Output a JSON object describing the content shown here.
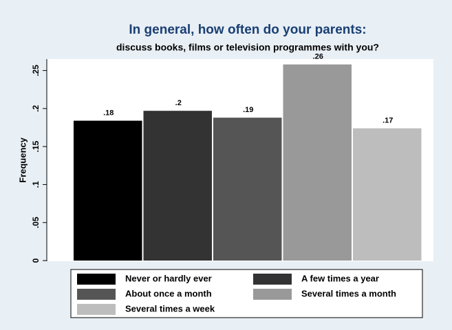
{
  "chart_data": {
    "type": "bar",
    "title": "In general, how often do your parents:",
    "subtitle": "discuss books, films or television programmes with you?",
    "y_label": "Frequency",
    "categories": [
      "Never or hardly ever",
      "A few times a year",
      "About once a month",
      "Several times a month",
      "Several times a week"
    ],
    "values": [
      0.184,
      0.197,
      0.188,
      0.258,
      0.174
    ],
    "value_labels": [
      ".18",
      ".2",
      ".19",
      ".26",
      ".17"
    ],
    "colors": [
      "#000000",
      "#333333",
      "#555555",
      "#999999",
      "#bdbdbd"
    ],
    "ylim": [
      0,
      0.265
    ],
    "yticks": [
      0,
      {
        "value": 0.05,
        "label": ".05"
      },
      {
        "value": 0.1,
        "label": ".1"
      },
      {
        "value": 0.15,
        "label": ".15"
      },
      {
        "value": 0.2,
        "label": ".2"
      },
      {
        "value": 0.25,
        "label": ".25"
      }
    ],
    "legend": "bottom"
  }
}
